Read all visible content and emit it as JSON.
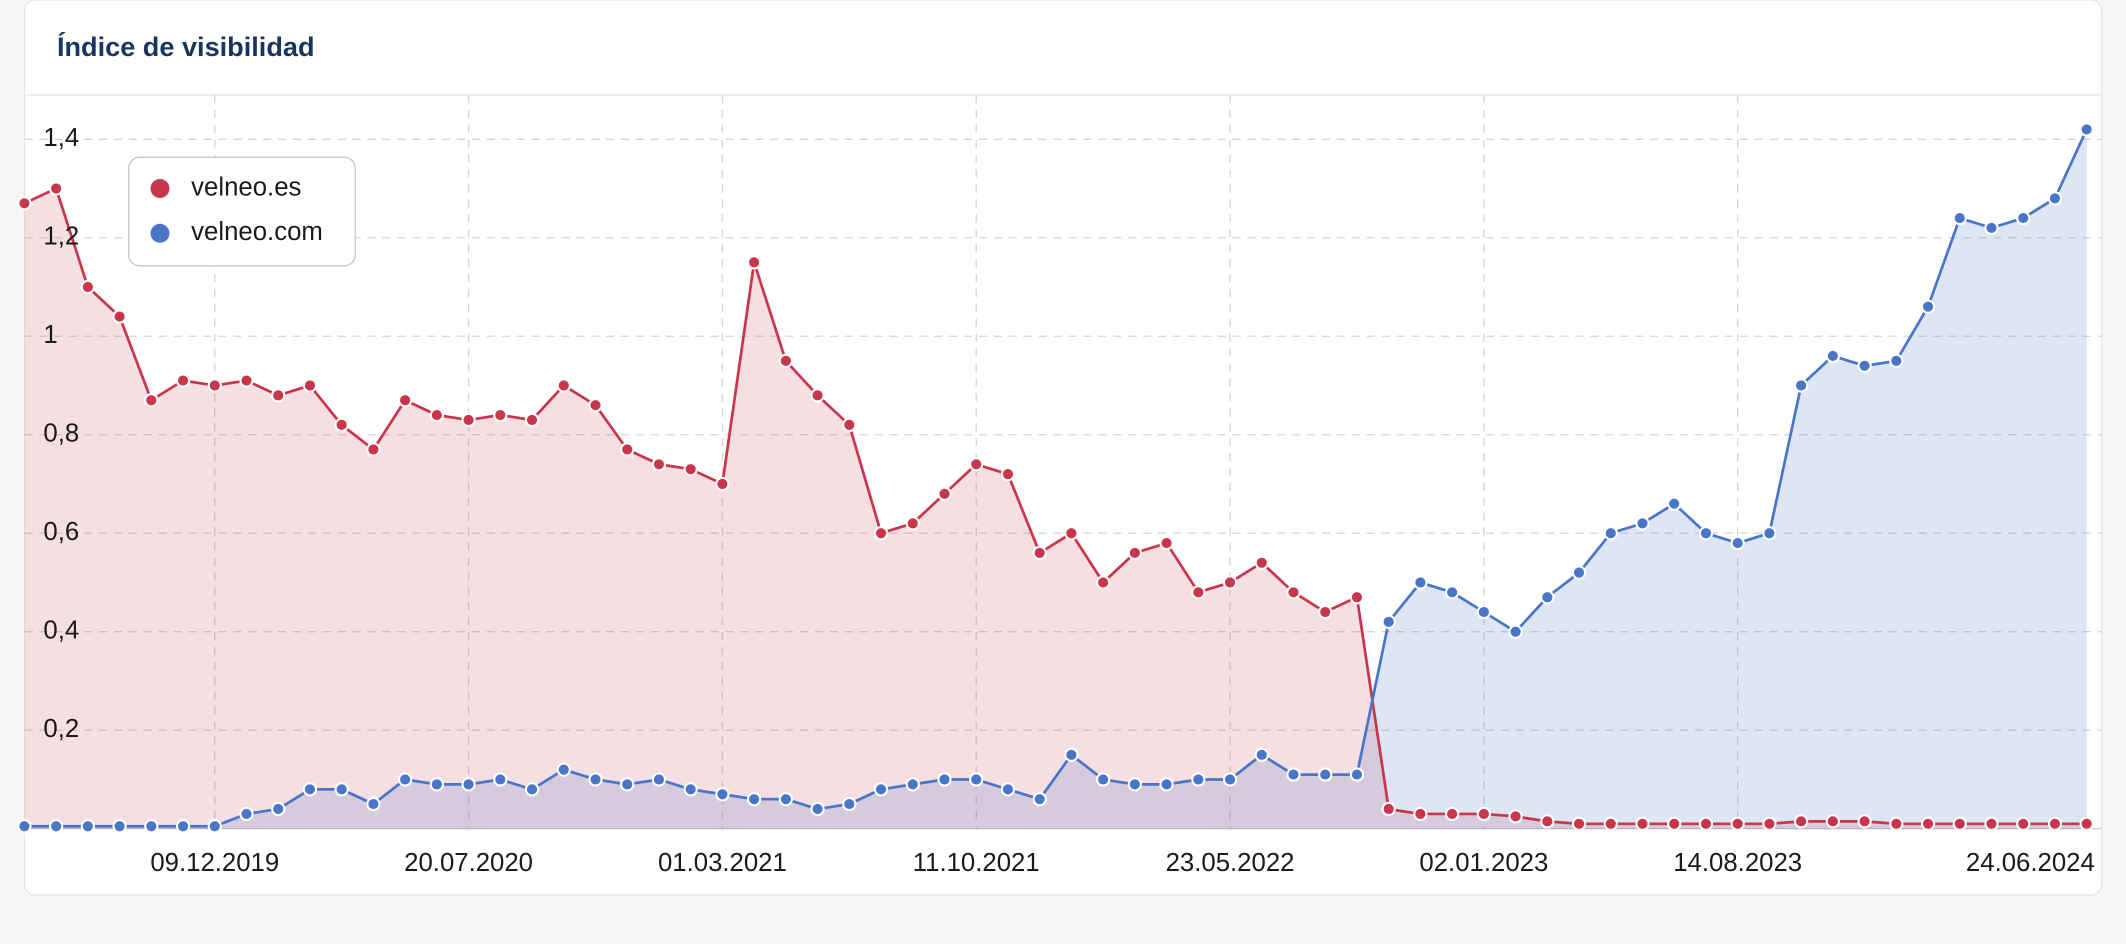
{
  "chart_data": {
    "type": "area",
    "title": "Índice de visibilidad",
    "categories": [
      null,
      null,
      null,
      null,
      null,
      null,
      "09.12.2019",
      null,
      null,
      null,
      null,
      null,
      null,
      null,
      "20.07.2020",
      null,
      null,
      null,
      null,
      null,
      null,
      null,
      "01.03.2021",
      null,
      null,
      null,
      null,
      null,
      null,
      null,
      "11.10.2021",
      null,
      null,
      null,
      null,
      null,
      null,
      null,
      "23.05.2022",
      null,
      null,
      null,
      null,
      null,
      null,
      null,
      "02.01.2023",
      null,
      null,
      null,
      null,
      null,
      null,
      null,
      "14.08.2023",
      null,
      null,
      null,
      null,
      null,
      null,
      null,
      null,
      null,
      null,
      "24.06.2024"
    ],
    "series": [
      {
        "name": "velneo.es",
        "color": "#c8364b",
        "values": [
          1.27,
          1.3,
          1.1,
          1.04,
          0.87,
          0.91,
          0.9,
          0.91,
          0.88,
          0.9,
          0.82,
          0.77,
          0.87,
          0.84,
          0.83,
          0.84,
          0.83,
          0.9,
          0.86,
          0.77,
          0.74,
          0.73,
          0.7,
          1.15,
          0.95,
          0.88,
          0.82,
          0.6,
          0.62,
          0.68,
          0.74,
          0.72,
          0.56,
          0.6,
          0.5,
          0.56,
          0.58,
          0.48,
          0.5,
          0.54,
          0.48,
          0.44,
          0.47,
          0.04,
          0.03,
          0.03,
          0.03,
          0.025,
          0.015,
          0.01,
          0.01,
          0.01,
          0.01,
          0.01,
          0.01,
          0.01,
          0.015,
          0.015,
          0.015,
          0.01,
          0.01,
          0.01,
          0.01,
          0.01,
          0.01,
          0.01
        ]
      },
      {
        "name": "velneo.com",
        "color": "#4a76c8",
        "values": [
          0.005,
          0.005,
          0.005,
          0.005,
          0.005,
          0.005,
          0.005,
          0.03,
          0.04,
          0.08,
          0.08,
          0.05,
          0.1,
          0.09,
          0.09,
          0.1,
          0.08,
          0.12,
          0.1,
          0.09,
          0.1,
          0.08,
          0.07,
          0.06,
          0.06,
          0.04,
          0.05,
          0.08,
          0.09,
          0.1,
          0.1,
          0.08,
          0.06,
          0.15,
          0.1,
          0.09,
          0.09,
          0.1,
          0.1,
          0.15,
          0.11,
          0.11,
          0.11,
          0.42,
          0.5,
          0.48,
          0.44,
          0.4,
          0.47,
          0.52,
          0.6,
          0.62,
          0.66,
          0.6,
          0.58,
          0.6,
          0.9,
          0.96,
          0.94,
          0.95,
          1.06,
          1.24,
          1.22,
          1.24,
          1.28,
          1.42
        ]
      }
    ],
    "ylim": [
      0,
      1.49
    ],
    "yticks": [
      {
        "value": 0.2,
        "label": "0,2"
      },
      {
        "value": 0.4,
        "label": "0,4"
      },
      {
        "value": 0.6,
        "label": "0,6"
      },
      {
        "value": 0.8,
        "label": "0,8"
      },
      1,
      {
        "value": 1.2,
        "label": "1,2"
      },
      {
        "value": 1.4,
        "label": "1,4"
      }
    ],
    "grid": true,
    "legend": "upper left"
  }
}
